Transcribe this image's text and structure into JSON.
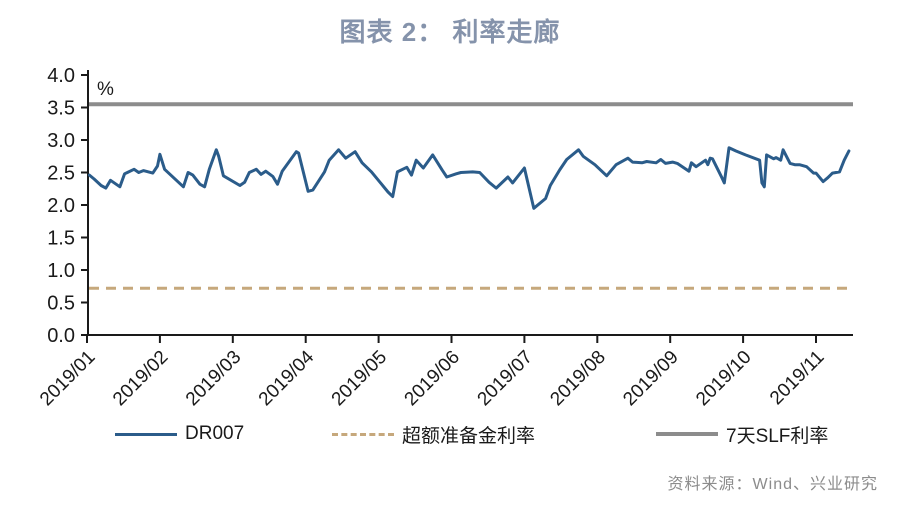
{
  "title": "图表 2： 利率走廊",
  "source": "资料来源：Wind、兴业研究",
  "colors": {
    "title_text": "#8593AB",
    "axis_text": "#1A1A1A",
    "source_text": "#8C8C8C",
    "dr007_line": "#2B5C8A",
    "excess_reserve_line": "#C6A87C",
    "slf_line": "#8C8C8C"
  },
  "chart_data": {
    "type": "line",
    "title": "图表 2： 利率走廊",
    "unit_label": "%",
    "ylim": [
      0.0,
      4.0
    ],
    "ytick_step": 0.5,
    "yticks": [
      "0.0",
      "0.5",
      "1.0",
      "1.5",
      "2.0",
      "2.5",
      "3.0",
      "3.5",
      "4.0"
    ],
    "xticks": [
      "2019/01",
      "2019/02",
      "2019/03",
      "2019/04",
      "2019/05",
      "2019/06",
      "2019/07",
      "2019/08",
      "2019/09",
      "2019/10",
      "2019/11"
    ],
    "grid": false,
    "legend_position": "bottom",
    "series": [
      {
        "name": "DR007",
        "style": "solid",
        "color": "#2B5C8A",
        "points": [
          [
            "2019/01/02",
            2.46
          ],
          [
            "2019/01/04",
            2.4
          ],
          [
            "2019/01/07",
            2.3
          ],
          [
            "2019/01/09",
            2.26
          ],
          [
            "2019/01/11",
            2.38
          ],
          [
            "2019/01/15",
            2.28
          ],
          [
            "2019/01/17",
            2.48
          ],
          [
            "2019/01/21",
            2.55
          ],
          [
            "2019/01/23",
            2.5
          ],
          [
            "2019/01/25",
            2.53
          ],
          [
            "2019/01/29",
            2.49
          ],
          [
            "2019/01/31",
            2.6
          ],
          [
            "2019/02/01",
            2.78
          ],
          [
            "2019/02/03",
            2.55
          ],
          [
            "2019/02/11",
            2.28
          ],
          [
            "2019/02/13",
            2.5
          ],
          [
            "2019/02/15",
            2.46
          ],
          [
            "2019/02/18",
            2.32
          ],
          [
            "2019/02/20",
            2.28
          ],
          [
            "2019/02/22",
            2.55
          ],
          [
            "2019/02/25",
            2.85
          ],
          [
            "2019/02/26",
            2.75
          ],
          [
            "2019/02/28",
            2.45
          ],
          [
            "2019/03/04",
            2.3
          ],
          [
            "2019/03/06",
            2.35
          ],
          [
            "2019/03/08",
            2.5
          ],
          [
            "2019/03/11",
            2.55
          ],
          [
            "2019/03/13",
            2.47
          ],
          [
            "2019/03/15",
            2.52
          ],
          [
            "2019/03/18",
            2.44
          ],
          [
            "2019/03/20",
            2.32
          ],
          [
            "2019/03/22",
            2.52
          ],
          [
            "2019/03/26",
            2.72
          ],
          [
            "2019/03/28",
            2.82
          ],
          [
            "2019/03/29",
            2.8
          ],
          [
            "2019/04/02",
            2.21
          ],
          [
            "2019/04/04",
            2.23
          ],
          [
            "2019/04/09",
            2.51
          ],
          [
            "2019/04/11",
            2.69
          ],
          [
            "2019/04/15",
            2.85
          ],
          [
            "2019/04/18",
            2.72
          ],
          [
            "2019/04/22",
            2.82
          ],
          [
            "2019/04/25",
            2.65
          ],
          [
            "2019/04/29",
            2.51
          ],
          [
            "2019/05/05",
            2.2
          ],
          [
            "2019/05/07",
            2.13
          ],
          [
            "2019/05/09",
            2.51
          ],
          [
            "2019/05/13",
            2.58
          ],
          [
            "2019/05/15",
            2.46
          ],
          [
            "2019/05/17",
            2.69
          ],
          [
            "2019/05/20",
            2.57
          ],
          [
            "2019/05/24",
            2.77
          ],
          [
            "2019/05/28",
            2.54
          ],
          [
            "2019/05/30",
            2.43
          ],
          [
            "2019/06/03",
            2.48
          ],
          [
            "2019/06/05",
            2.5
          ],
          [
            "2019/06/10",
            2.51
          ],
          [
            "2019/06/13",
            2.5
          ],
          [
            "2019/06/17",
            2.35
          ],
          [
            "2019/06/20",
            2.26
          ],
          [
            "2019/06/25",
            2.43
          ],
          [
            "2019/06/27",
            2.34
          ],
          [
            "2019/07/01",
            2.57
          ],
          [
            "2019/07/05",
            1.95
          ],
          [
            "2019/07/10",
            2.1
          ],
          [
            "2019/07/12",
            2.3
          ],
          [
            "2019/07/16",
            2.54
          ],
          [
            "2019/07/19",
            2.7
          ],
          [
            "2019/07/24",
            2.85
          ],
          [
            "2019/07/26",
            2.75
          ],
          [
            "2019/07/31",
            2.62
          ],
          [
            "2019/08/05",
            2.45
          ],
          [
            "2019/08/09",
            2.62
          ],
          [
            "2019/08/14",
            2.72
          ],
          [
            "2019/08/16",
            2.66
          ],
          [
            "2019/08/20",
            2.65
          ],
          [
            "2019/08/22",
            2.67
          ],
          [
            "2019/08/26",
            2.65
          ],
          [
            "2019/08/28",
            2.7
          ],
          [
            "2019/08/30",
            2.64
          ],
          [
            "2019/09/02",
            2.66
          ],
          [
            "2019/09/04",
            2.64
          ],
          [
            "2019/09/09",
            2.52
          ],
          [
            "2019/09/10",
            2.65
          ],
          [
            "2019/09/12",
            2.59
          ],
          [
            "2019/09/16",
            2.69
          ],
          [
            "2019/09/17",
            2.62
          ],
          [
            "2019/09/18",
            2.72
          ],
          [
            "2019/09/19",
            2.71
          ],
          [
            "2019/09/23",
            2.42
          ],
          [
            "2019/09/24",
            2.34
          ],
          [
            "2019/09/26",
            2.88
          ],
          [
            "2019/09/29",
            2.83
          ],
          [
            "2019/10/02",
            2.77
          ],
          [
            "2019/10/08",
            2.69
          ],
          [
            "2019/10/09",
            2.34
          ],
          [
            "2019/10/10",
            2.28
          ],
          [
            "2019/10/11",
            2.77
          ],
          [
            "2019/10/14",
            2.71
          ],
          [
            "2019/10/15",
            2.73
          ],
          [
            "2019/10/17",
            2.69
          ],
          [
            "2019/10/18",
            2.85
          ],
          [
            "2019/10/21",
            2.64
          ],
          [
            "2019/10/23",
            2.62
          ],
          [
            "2019/10/25",
            2.62
          ],
          [
            "2019/10/28",
            2.59
          ],
          [
            "2019/10/31",
            2.49
          ],
          [
            "2019/11/01",
            2.49
          ],
          [
            "2019/11/04",
            2.36
          ],
          [
            "2019/11/06",
            2.42
          ],
          [
            "2019/11/08",
            2.49
          ],
          [
            "2019/11/11",
            2.51
          ],
          [
            "2019/11/13",
            2.69
          ],
          [
            "2019/11/15",
            2.83
          ]
        ]
      },
      {
        "name": "超额准备金利率",
        "style": "dashed",
        "color": "#C6A87C",
        "constant_value": 0.72
      },
      {
        "name": "7天SLF利率",
        "style": "solid",
        "color": "#8C8C8C",
        "constant_value": 3.55
      }
    ]
  }
}
